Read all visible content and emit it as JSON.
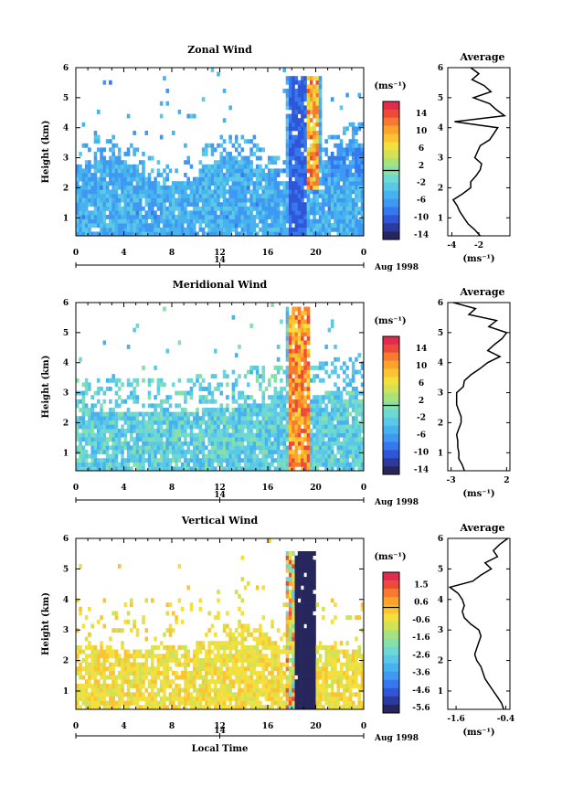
{
  "colors": {
    "colormap": [
      "#26265c",
      "#2b3a9e",
      "#2f56d6",
      "#3578ef",
      "#3f98f2",
      "#47b3ee",
      "#5cc8e8",
      "#6ed8d2",
      "#86e0a8",
      "#a8e27c",
      "#d2e256",
      "#f3e03e",
      "#fcc432",
      "#fca32c",
      "#f77a2e",
      "#ee4a3a",
      "#e12c4e"
    ]
  },
  "chart_data": [
    {
      "type": "heatmap",
      "title": "Zonal Wind",
      "ylabel": "Height (km)",
      "x_tick_labels": [
        "0",
        "4",
        "8",
        "12",
        "16",
        "20",
        "0"
      ],
      "y_tick_labels": [
        "1",
        "2",
        "3",
        "4",
        "5",
        "6"
      ],
      "xlim": [
        0,
        24
      ],
      "ylim": [
        0.4,
        6.0
      ],
      "date_labels": [
        "14",
        "Aug 1998"
      ],
      "colorbar_unit": "(ms⁻¹)",
      "colorbar_tick_labels": [
        "14",
        "10",
        "6",
        "2",
        "-2",
        "-6",
        "-10",
        "-14"
      ],
      "colorbar_range": [
        -16,
        16
      ],
      "approx_values": {
        "background_below_3km": -6,
        "jet_18_19h_column": -12,
        "updraft_19_5h_top": 10
      },
      "profile": {
        "title": "Average",
        "xlabel": "(ms⁻¹)",
        "x_tick_labels": [
          "-4",
          "-2"
        ],
        "x_ticks": [
          -4,
          -2
        ],
        "xlim": [
          -4.3,
          0.3
        ],
        "height": [
          0.4,
          0.6,
          0.8,
          1.0,
          1.2,
          1.4,
          1.6,
          1.8,
          2.0,
          2.2,
          2.4,
          2.6,
          2.8,
          3.0,
          3.2,
          3.4,
          3.6,
          3.8,
          4.0,
          4.2,
          4.4,
          4.6,
          4.8,
          5.0,
          5.2,
          5.4,
          5.6,
          5.8,
          6.0
        ],
        "value": [
          -1.9,
          -2.3,
          -2.8,
          -3.1,
          -3.4,
          -3.6,
          -3.9,
          -3.2,
          -2.6,
          -2.6,
          -2.2,
          -1.9,
          -1.8,
          -2.3,
          -2.1,
          -1.9,
          -1.2,
          -0.9,
          -0.6,
          -3.8,
          -0.1,
          -0.7,
          -1.2,
          -2.4,
          -1.1,
          -1.6,
          -2.5,
          -2.0,
          -2.6
        ]
      }
    },
    {
      "type": "heatmap",
      "title": "Meridional Wind",
      "ylabel": "Height (km)",
      "x_tick_labels": [
        "0",
        "4",
        "8",
        "12",
        "16",
        "20",
        "0"
      ],
      "y_tick_labels": [
        "1",
        "2",
        "3",
        "4",
        "5",
        "6"
      ],
      "xlim": [
        0,
        24
      ],
      "ylim": [
        0.4,
        6.0
      ],
      "date_labels": [
        "14",
        "Aug 1998"
      ],
      "colorbar_unit": "(ms⁻¹)",
      "colorbar_tick_labels": [
        "14",
        "10",
        "6",
        "2",
        "-2",
        "-6",
        "-10",
        "-14"
      ],
      "colorbar_range": [
        -16,
        16
      ],
      "approx_values": {
        "background_below_3km": -3,
        "updraft_18_5h": 12
      },
      "profile": {
        "title": "Average",
        "xlabel": "(ms⁻¹)",
        "x_tick_labels": [
          "-3",
          "2"
        ],
        "x_ticks": [
          -3,
          2
        ],
        "xlim": [
          -3.3,
          2.3
        ],
        "height": [
          0.4,
          0.6,
          0.8,
          1.0,
          1.2,
          1.4,
          1.6,
          1.8,
          2.0,
          2.2,
          2.4,
          2.6,
          2.8,
          3.0,
          3.2,
          3.4,
          3.6,
          3.8,
          4.0,
          4.2,
          4.4,
          4.6,
          4.8,
          5.0,
          5.2,
          5.4,
          5.6,
          5.8,
          6.0
        ],
        "value": [
          -1.8,
          -2.0,
          -2.3,
          -2.3,
          -2.4,
          -2.4,
          -2.5,
          -2.3,
          -2.1,
          -2.1,
          -2.3,
          -2.5,
          -2.5,
          -2.5,
          -1.9,
          -1.8,
          -1.2,
          -0.4,
          0.3,
          1.4,
          0.3,
          0.9,
          1.6,
          2.0,
          0.4,
          1.1,
          -1.4,
          -0.8,
          -2.8
        ]
      }
    },
    {
      "type": "heatmap",
      "title": "Vertical Wind",
      "ylabel": "Height (km)",
      "xlabel": "Local Time",
      "x_tick_labels": [
        "0",
        "4",
        "8",
        "12",
        "16",
        "20",
        "0"
      ],
      "y_tick_labels": [
        "1",
        "2",
        "3",
        "4",
        "5",
        "6"
      ],
      "xlim": [
        0,
        24
      ],
      "ylim": [
        0.4,
        6.0
      ],
      "date_labels": [
        "14",
        "Aug 1998"
      ],
      "colorbar_unit": "(ms⁻¹)",
      "colorbar_tick_labels": [
        "1.5",
        "0.6",
        "-0.6",
        "-1.6",
        "-2.6",
        "-3.6",
        "-4.6",
        "-5.6"
      ],
      "colorbar_range": [
        -6.0,
        2.0
      ],
      "approx_values": {
        "background": -0.6,
        "downdraft_18_5_20h": -5.8,
        "updraft_top": 1.5
      },
      "profile": {
        "title": "Average",
        "xlabel": "(ms⁻¹)",
        "x_tick_labels": [
          "-1.6",
          "-0.4"
        ],
        "x_ticks": [
          -1.6,
          -0.4
        ],
        "xlim": [
          -1.8,
          -0.3
        ],
        "height": [
          0.4,
          0.6,
          0.8,
          1.0,
          1.2,
          1.4,
          1.6,
          1.8,
          2.0,
          2.2,
          2.4,
          2.6,
          2.8,
          3.0,
          3.2,
          3.4,
          3.6,
          3.8,
          4.0,
          4.2,
          4.4,
          4.6,
          4.8,
          5.0,
          5.2,
          5.4,
          5.6,
          5.8,
          6.0
        ],
        "value": [
          -0.45,
          -0.5,
          -0.6,
          -0.7,
          -0.8,
          -0.9,
          -0.95,
          -1.0,
          -1.1,
          -1.15,
          -1.1,
          -1.05,
          -1.0,
          -1.05,
          -1.25,
          -1.4,
          -1.45,
          -1.4,
          -1.45,
          -1.55,
          -1.75,
          -1.2,
          -1.0,
          -0.75,
          -0.9,
          -0.6,
          -0.7,
          -0.55,
          -0.35
        ]
      }
    }
  ]
}
